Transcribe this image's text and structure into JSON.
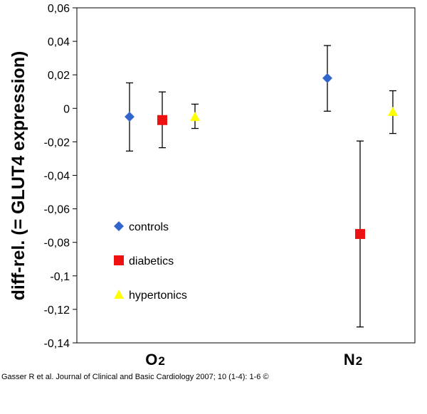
{
  "chart_data": {
    "type": "scatter",
    "ylabel": "diff-rel. (= GLUT4 expression)",
    "ylim": [
      -0.14,
      0.06
    ],
    "yticks": [
      0.06,
      0.04,
      0.02,
      0,
      -0.02,
      -0.04,
      -0.06,
      -0.08,
      -0.1,
      -0.12,
      -0.14
    ],
    "ytick_labels": [
      "0,06",
      "0,04",
      "0,02",
      "0",
      "-0,02",
      "-0,04",
      "-0,06",
      "-0,08",
      "-0,1",
      "-0,12",
      "-0,14"
    ],
    "categories": [
      {
        "main": "O",
        "sub": "2"
      },
      {
        "main": "N",
        "sub": "2"
      }
    ],
    "grid": false,
    "legend_position": "left",
    "series": [
      {
        "name": "controls",
        "marker": "diamond",
        "color": "#3366cc",
        "values": [
          -0.005,
          0.018
        ],
        "err_low": [
          -0.0255,
          -0.0017
        ],
        "err_high": [
          0.0152,
          0.0375
        ]
      },
      {
        "name": "diabetics",
        "marker": "square",
        "color": "#ee1111",
        "values": [
          -0.007,
          -0.075
        ],
        "err_low": [
          -0.0235,
          -0.1305
        ],
        "err_high": [
          0.0098,
          -0.0195
        ]
      },
      {
        "name": "hypertonics",
        "marker": "triangle",
        "color": "#ffff00",
        "values": [
          -0.005,
          -0.002
        ],
        "err_low": [
          -0.012,
          -0.015
        ],
        "err_high": [
          0.0025,
          0.0105
        ]
      }
    ]
  },
  "credit": "Gasser R et al. Journal of Clinical and Basic Cardiology 2007; 10 (1-4): 1-6 ©"
}
